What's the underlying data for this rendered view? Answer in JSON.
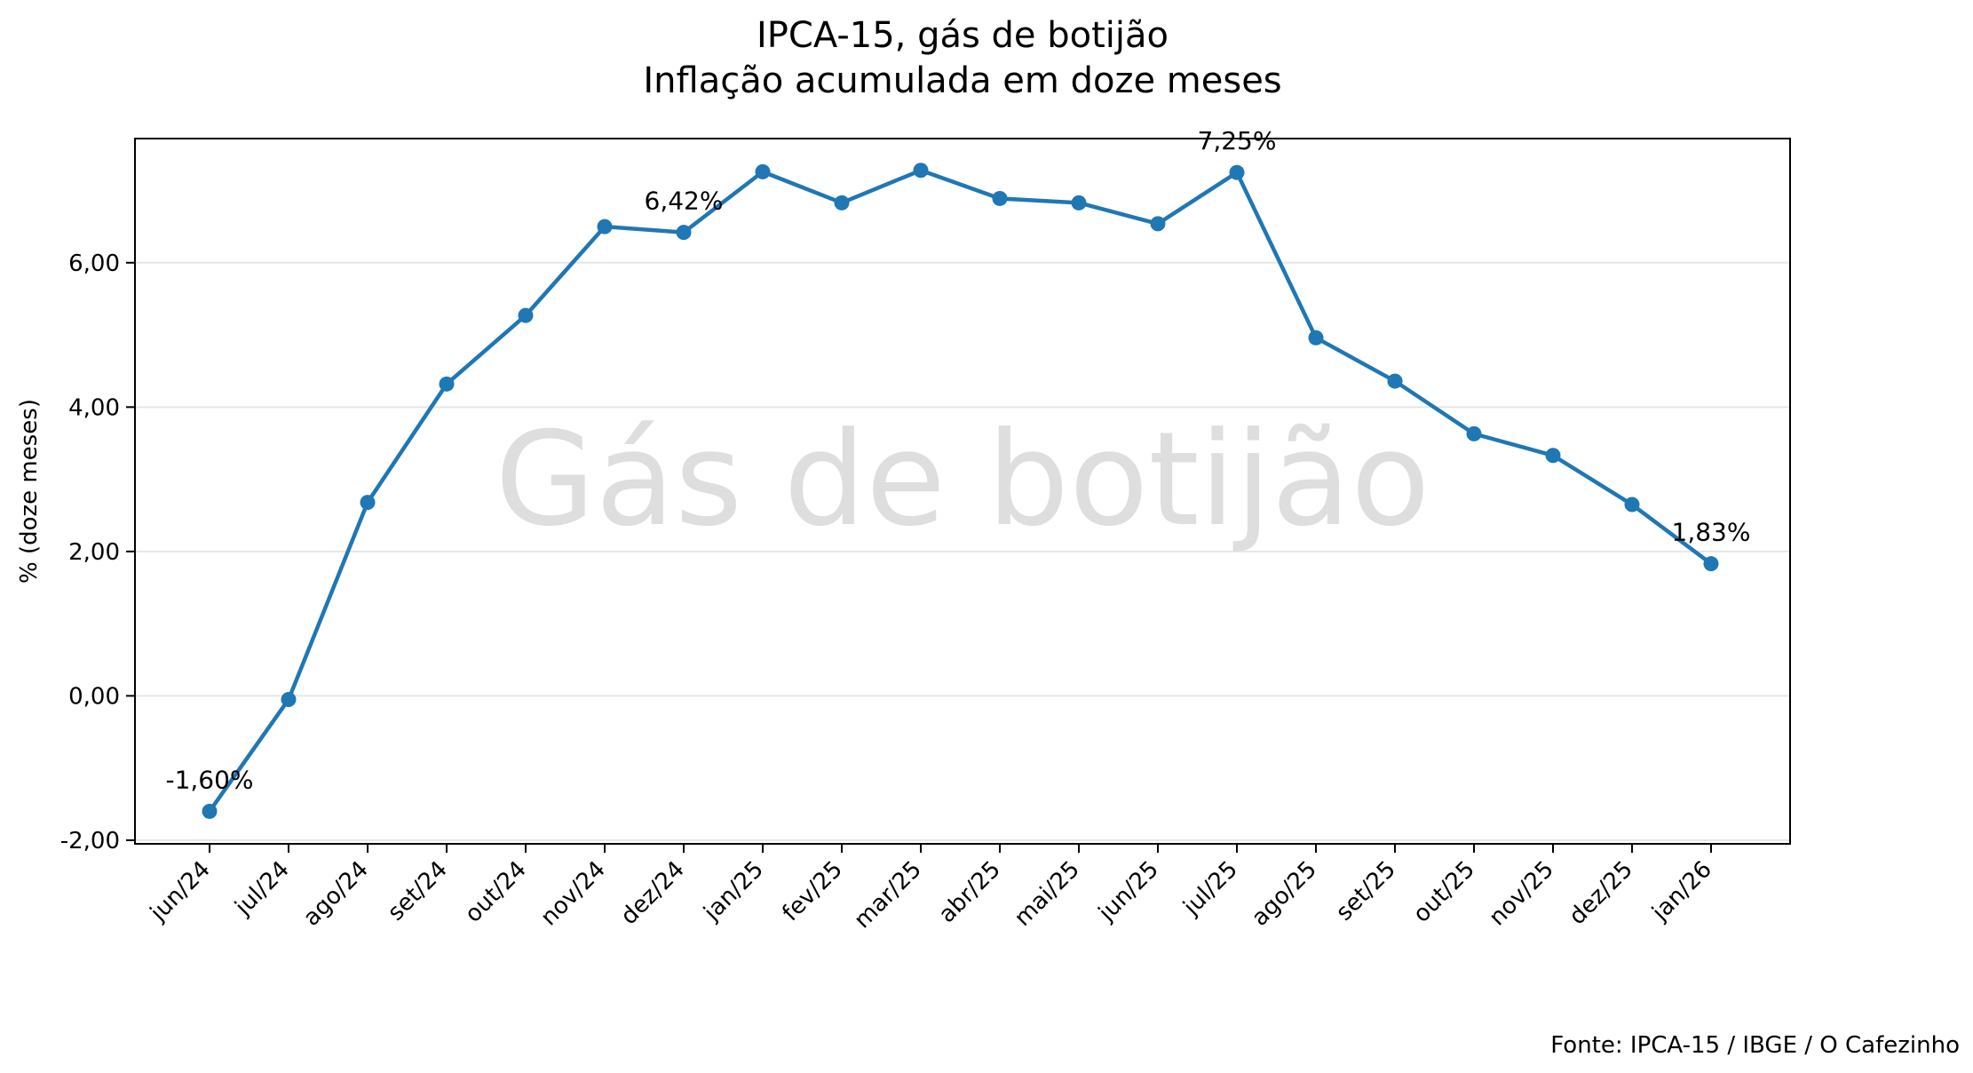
{
  "chart_data": {
    "type": "line",
    "title": "IPCA-15, gás de botijão",
    "subtitle": "Inflação acumulada em doze meses",
    "ylabel": "% (doze meses)",
    "xlabel": "",
    "watermark": "Gás de botijão",
    "source": "Fonte: IPCA-15 / IBGE / O Cafezinho",
    "categories": [
      "jun/24",
      "jul/24",
      "ago/24",
      "set/24",
      "out/24",
      "nov/24",
      "dez/24",
      "jan/25",
      "fev/25",
      "mar/25",
      "abr/25",
      "mai/25",
      "jun/25",
      "jul/25",
      "ago/25",
      "set/25",
      "out/25",
      "nov/25",
      "dez/25",
      "jan/26"
    ],
    "series": [
      {
        "values": [
          -1.6,
          -0.05,
          2.68,
          4.32,
          5.27,
          6.5,
          6.42,
          7.26,
          6.83,
          7.28,
          6.89,
          6.83,
          6.54,
          7.25,
          4.96,
          4.36,
          3.63,
          3.33,
          2.65,
          1.83
        ],
        "color": "#1f77b4"
      }
    ],
    "annotations": [
      {
        "index": 0,
        "text": "-1,60%"
      },
      {
        "index": 6,
        "text": "6,42%"
      },
      {
        "index": 13,
        "text": "7,25%"
      },
      {
        "index": 19,
        "text": "1,83%"
      }
    ],
    "yticks": [
      "-2,00",
      "0,00",
      "2,00",
      "4,00",
      "6,00"
    ],
    "ytick_values": [
      -2,
      0,
      2,
      4,
      6
    ],
    "ylim": [
      -2.05,
      7.72
    ],
    "grid": "horizontal",
    "legend": "none"
  }
}
